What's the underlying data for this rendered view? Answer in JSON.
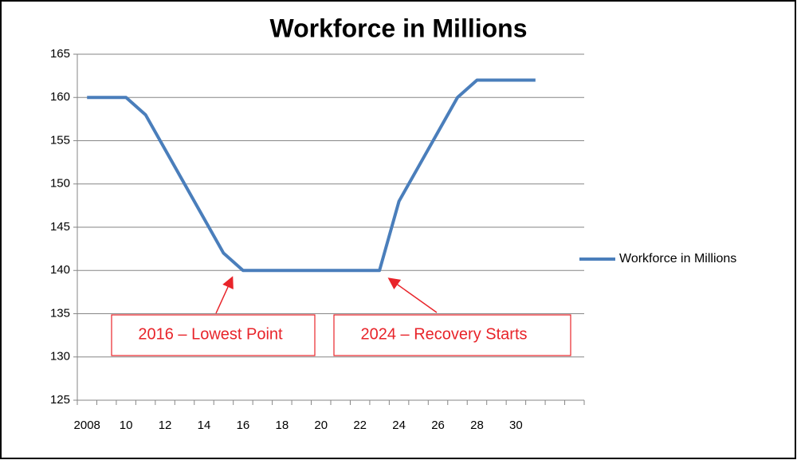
{
  "chart_data": {
    "type": "line",
    "title": "Workforce in Millions",
    "categories": [
      "2008",
      null,
      "10",
      null,
      "12",
      null,
      "14",
      null,
      "16",
      null,
      "18",
      null,
      "20",
      null,
      "22",
      null,
      "24",
      null,
      "26",
      null,
      "28",
      null,
      "30",
      null,
      null,
      null
    ],
    "series": [
      {
        "name": "Workforce in Millions",
        "color": "#4a7ebb",
        "values": [
          160,
          160,
          160,
          158,
          154,
          150,
          146,
          142,
          140,
          140,
          140,
          140,
          140,
          140,
          140,
          140,
          148,
          152,
          156,
          160,
          162,
          162,
          162,
          162,
          null,
          null
        ]
      }
    ],
    "ylim": [
      125,
      165
    ],
    "yticks": [
      125,
      130,
      135,
      140,
      145,
      150,
      155,
      160,
      165
    ],
    "grid": true,
    "legend": "right",
    "annotations": [
      "2016 – Lowest Point",
      "2024 – Recovery Starts"
    ]
  }
}
